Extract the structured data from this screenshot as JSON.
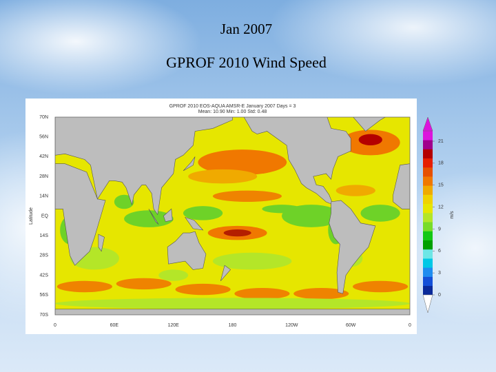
{
  "title": "Jan 2007",
  "subtitle": "GPROF 2010 Wind Speed",
  "map": {
    "header": [
      "GPROF 2010   EOS-AQUA   AMSR-E   January 2007   Days = 3",
      "Mean: 10.90   Min: 1.00   Std: 0.48"
    ],
    "y_axis_label": "Latitude",
    "lat_labels": [
      "70N",
      "56N",
      "42N",
      "28N",
      "14N",
      "EQ",
      "14S",
      "28S",
      "42S",
      "56S",
      "70S"
    ],
    "lon_labels": [
      "0",
      "60E",
      "120E",
      "180",
      "120W",
      "60W",
      "0"
    ],
    "colorbar": {
      "ticks": [
        0,
        3,
        6,
        9,
        12,
        15,
        18,
        21
      ],
      "unit": "m/s",
      "colors": [
        "#0a2a9a",
        "#1450d8",
        "#1e8cf0",
        "#00c8e6",
        "#6ee6e6",
        "#00a000",
        "#14c814",
        "#78dc28",
        "#b4e628",
        "#e6e600",
        "#f0d200",
        "#f0aa00",
        "#f07800",
        "#e65000",
        "#e61e00",
        "#b40000",
        "#a0008c",
        "#dc14dc"
      ]
    }
  }
}
